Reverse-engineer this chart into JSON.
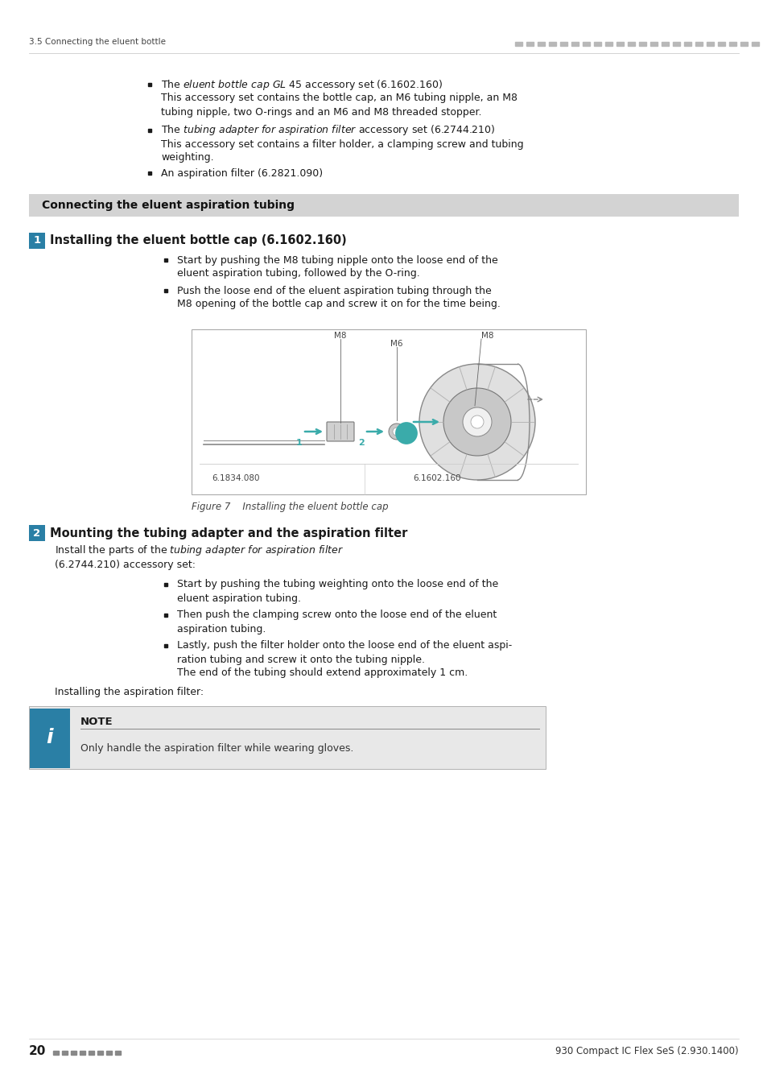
{
  "bg_color": "#ffffff",
  "header_text_left": "3.5 Connecting the eluent bottle",
  "header_dots_color": "#b0b0b0",
  "footer_page": "20",
  "footer_dots_color": "#888888",
  "footer_right": "930 Compact IC Flex SeS (2.930.1400)",
  "section_header_text": "Connecting the eluent aspiration tubing",
  "section_header_bg": "#d3d3d3",
  "step1_num": "1",
  "step2_num": "2",
  "note_bg": "#e8e8e8",
  "note_icon_bg": "#2a7fa5",
  "note_icon_text": "i",
  "figure_caption": "Figure 7    Installing the eluent bottle cap",
  "teal_color": "#3aabaa",
  "step_num_bg": "#2a7fa5",
  "step_num_color": "#ffffff",
  "text_color": "#1a1a1a",
  "light_gray": "#cccccc",
  "medium_gray": "#aaaaaa"
}
